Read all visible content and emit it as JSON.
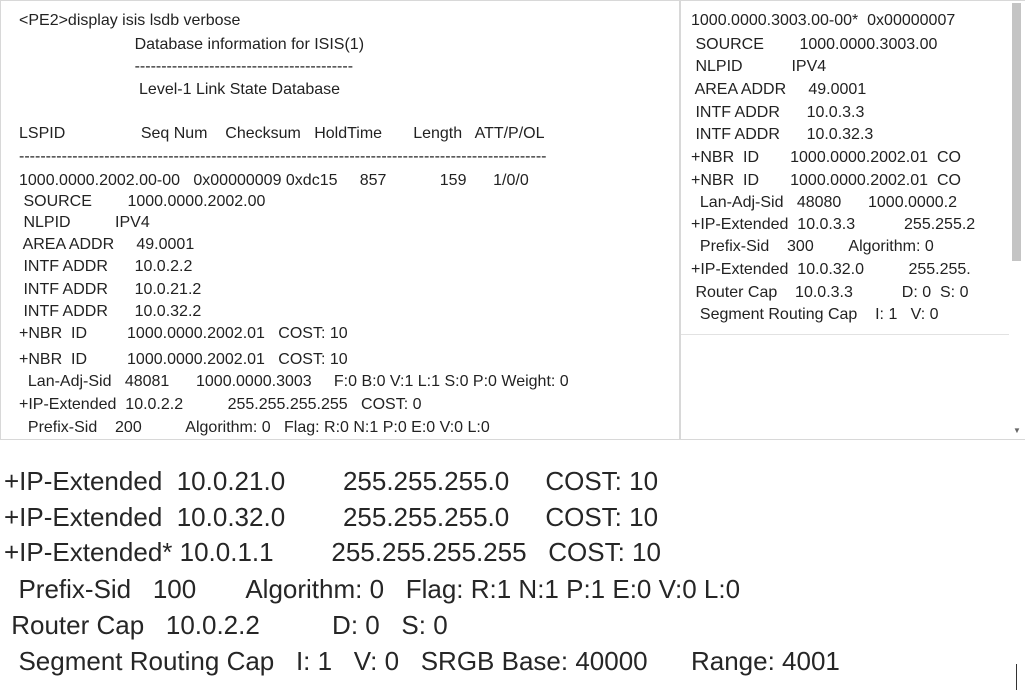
{
  "left_panel": {
    "lines": [
      "<PE2>display isis lsdb verbose",
      "                          Database information for ISIS(1)",
      "                          -----------------------------------------",
      "                           Level-1 Link State Database",
      "LSPID                 Seq Num    Checksum   HoldTime       Length   ATT/P/OL",
      "---------------------------------------------------------------------------------------------------",
      "1000.0000.2002.00-00   0x00000009 0xdc15     857            159      1/0/0",
      " SOURCE        1000.0000.2002.00",
      " NLPID          IPV4",
      " AREA ADDR     49.0001",
      " INTF ADDR      10.0.2.2",
      " INTF ADDR      10.0.21.2",
      " INTF ADDR      10.0.32.2",
      "+NBR  ID         1000.0000.2002.01   COST: 10",
      "+NBR  ID         1000.0000.2002.01   COST: 10",
      "  Lan-Adj-Sid   48081      1000.0000.3003     F:0 B:0 V:1 L:1 S:0 P:0 Weight: 0",
      "+IP-Extended  10.0.2.2          255.255.255.255   COST: 0",
      "  Prefix-Sid    200          Algorithm: 0   Flag: R:0 N:1 P:0 E:0 V:0 L:0"
    ]
  },
  "right_panel": {
    "lines": [
      "1000.0000.3003.00-00*  0x00000007",
      " SOURCE        1000.0000.3003.00",
      " NLPID           IPV4",
      " AREA ADDR     49.0001",
      " INTF ADDR      10.0.3.3",
      " INTF ADDR      10.0.32.3",
      "+NBR  ID       1000.0000.2002.01  CO",
      "+NBR  ID       1000.0000.2002.01  CO",
      "  Lan-Adj-Sid   48080      1000.0000.2",
      "+IP-Extended  10.0.3.3           255.255.2",
      "  Prefix-Sid    300        Algorithm: 0",
      "+IP-Extended  10.0.32.0          255.255.",
      " Router Cap    10.0.3.3           D: 0  S: 0",
      "  Segment Routing Cap    I: 1   V: 0"
    ]
  },
  "bottom_panel": {
    "lines": [
      "+IP-Extended  10.0.21.0        255.255.255.0     COST: 10",
      "+IP-Extended  10.0.32.0        255.255.255.0     COST: 10",
      "+IP-Extended* 10.0.1.1        255.255.255.255   COST: 10",
      "  Prefix-Sid   100       Algorithm: 0   Flag: R:1 N:1 P:1 E:0 V:0 L:0",
      " Router Cap   10.0.2.2          D: 0   S: 0",
      "  Segment Routing Cap   I: 1   V: 0   SRGB Base: 40000      Range: 4001"
    ]
  },
  "icons": {
    "scroll_down": "triangle-down"
  }
}
